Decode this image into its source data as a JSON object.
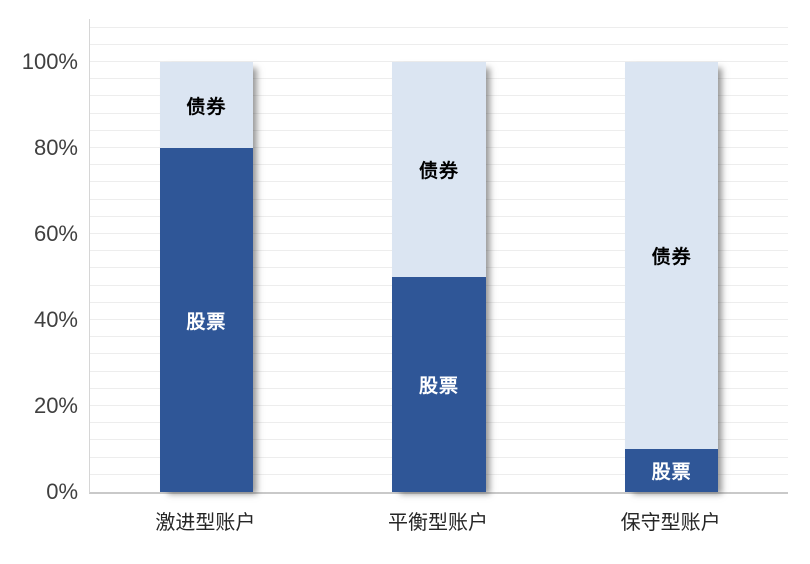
{
  "chart_data": {
    "type": "bar",
    "stacked": true,
    "title": "",
    "xlabel": "",
    "ylabel": "",
    "categories": [
      "激进型账户",
      "平衡型账户",
      "保守型账户"
    ],
    "series": [
      {
        "name": "股票",
        "values": [
          80,
          50,
          10
        ],
        "color": "#2F5697",
        "label_color": "#FFFFFF"
      },
      {
        "name": "债券",
        "values": [
          20,
          50,
          90
        ],
        "color": "#DBE5F2",
        "label_color": "#000000"
      }
    ],
    "yticks": [
      {
        "label": "0%",
        "value": 0
      },
      {
        "label": "20%",
        "value": 20
      },
      {
        "label": "40%",
        "value": 40
      },
      {
        "label": "60%",
        "value": 60
      },
      {
        "label": "80%",
        "value": 80
      },
      {
        "label": "100%",
        "value": 100
      }
    ],
    "ylim": [
      0,
      110
    ],
    "minor_gridline_step": 4,
    "grid": true,
    "legend_position": "none",
    "bar_gap_ratio": 1.5,
    "style": {
      "gridline_color": "#EDEDED",
      "y_axis_line_color": "#D6D6D6",
      "x_axis_line_color": "#C9C9C9",
      "tick_text_color": "#404040",
      "category_text_color": "#262626",
      "background": "#FFFFFF"
    }
  }
}
